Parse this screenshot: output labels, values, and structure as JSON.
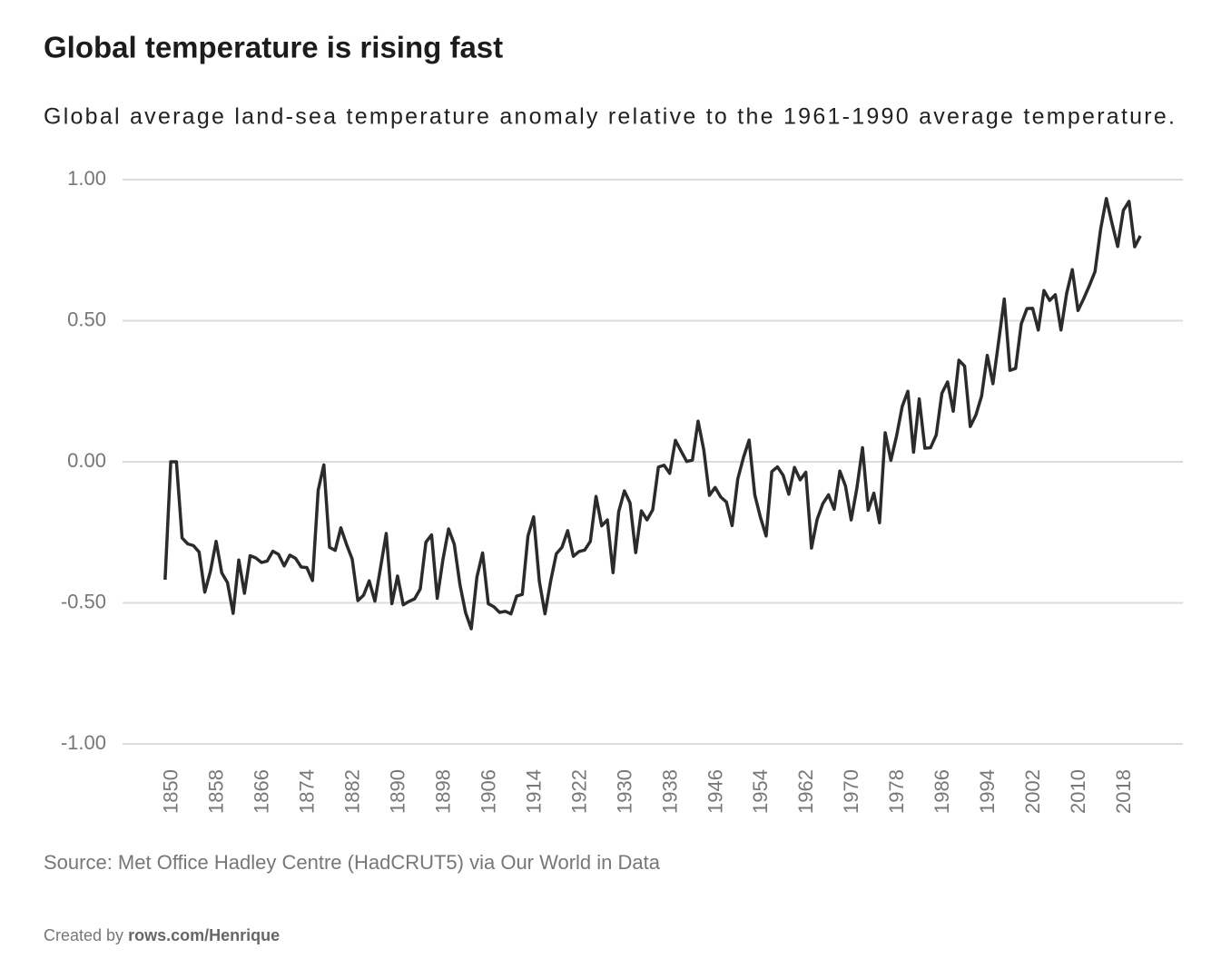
{
  "chart_data": {
    "type": "line",
    "title": "Global temperature is rising fast",
    "subtitle": "Global average land-sea temperature anomaly relative to the 1961-1990 average temperature.",
    "source": "Source: Met Office Hadley Centre (HadCRUT5) via Our World in Data",
    "credit_prefix": "Created by",
    "credit_link": "rows.com/Henrique",
    "color": "#2b2b2b",
    "grid": true,
    "x": [
      1850,
      1851,
      1852,
      1853,
      1854,
      1855,
      1856,
      1857,
      1858,
      1859,
      1860,
      1861,
      1862,
      1863,
      1864,
      1865,
      1866,
      1867,
      1868,
      1869,
      1870,
      1871,
      1872,
      1873,
      1874,
      1875,
      1876,
      1877,
      1878,
      1879,
      1880,
      1881,
      1882,
      1883,
      1884,
      1885,
      1886,
      1887,
      1888,
      1889,
      1890,
      1891,
      1892,
      1893,
      1894,
      1895,
      1896,
      1897,
      1898,
      1899,
      1900,
      1901,
      1902,
      1903,
      1904,
      1905,
      1906,
      1907,
      1908,
      1909,
      1910,
      1911,
      1912,
      1913,
      1914,
      1915,
      1916,
      1917,
      1918,
      1919,
      1920,
      1921,
      1922,
      1923,
      1924,
      1925,
      1926,
      1927,
      1928,
      1929,
      1930,
      1931,
      1932,
      1933,
      1934,
      1935,
      1936,
      1937,
      1938,
      1939,
      1940,
      1941,
      1942,
      1943,
      1944,
      1945,
      1946,
      1947,
      1948,
      1949,
      1950,
      1951,
      1952,
      1953,
      1954,
      1955,
      1956,
      1957,
      1958,
      1959,
      1960,
      1961,
      1962,
      1963,
      1964,
      1965,
      1966,
      1967,
      1968,
      1969,
      1970,
      1971,
      1972,
      1973,
      1974,
      1975,
      1976,
      1977,
      1978,
      1979,
      1980,
      1981,
      1982,
      1983,
      1984,
      1985,
      1986,
      1987,
      1988,
      1989,
      1990,
      1991,
      1992,
      1993,
      1994,
      1995,
      1996,
      1997,
      1998,
      1999,
      2000,
      2001,
      2002,
      2003,
      2004,
      2005,
      2006,
      2007,
      2008,
      2009,
      2010,
      2011,
      2012,
      2013,
      2014,
      2015,
      2016,
      2017,
      2018,
      2019,
      2020,
      2021,
      2022
    ],
    "values": [
      -0.418,
      0.0,
      0.0,
      -0.27,
      -0.291,
      -0.297,
      -0.32,
      -0.462,
      -0.388,
      -0.282,
      -0.394,
      -0.428,
      -0.537,
      -0.348,
      -0.466,
      -0.333,
      -0.341,
      -0.357,
      -0.352,
      -0.317,
      -0.328,
      -0.369,
      -0.331,
      -0.342,
      -0.373,
      -0.375,
      -0.421,
      -0.101,
      -0.011,
      -0.303,
      -0.314,
      -0.234,
      -0.293,
      -0.345,
      -0.492,
      -0.473,
      -0.422,
      -0.494,
      -0.375,
      -0.254,
      -0.503,
      -0.405,
      -0.507,
      -0.495,
      -0.486,
      -0.451,
      -0.285,
      -0.259,
      -0.484,
      -0.347,
      -0.238,
      -0.292,
      -0.435,
      -0.535,
      -0.592,
      -0.408,
      -0.323,
      -0.503,
      -0.514,
      -0.534,
      -0.53,
      -0.539,
      -0.476,
      -0.47,
      -0.263,
      -0.195,
      -0.423,
      -0.539,
      -0.423,
      -0.326,
      -0.303,
      -0.244,
      -0.335,
      -0.318,
      -0.313,
      -0.282,
      -0.123,
      -0.227,
      -0.206,
      -0.393,
      -0.177,
      -0.103,
      -0.146,
      -0.322,
      -0.174,
      -0.206,
      -0.17,
      -0.019,
      -0.012,
      -0.041,
      0.076,
      0.038,
      0.001,
      0.006,
      0.144,
      0.043,
      -0.119,
      -0.091,
      -0.125,
      -0.143,
      -0.226,
      -0.061,
      0.015,
      0.077,
      -0.117,
      -0.197,
      -0.263,
      -0.035,
      -0.018,
      -0.048,
      -0.115,
      -0.02,
      -0.064,
      -0.037,
      -0.306,
      -0.204,
      -0.148,
      -0.117,
      -0.168,
      -0.033,
      -0.086,
      -0.206,
      -0.094,
      0.05,
      -0.172,
      -0.111,
      -0.216,
      0.103,
      0.005,
      0.091,
      0.196,
      0.25,
      0.034,
      0.223,
      0.048,
      0.05,
      0.095,
      0.243,
      0.283,
      0.179,
      0.36,
      0.339,
      0.125,
      0.166,
      0.233,
      0.377,
      0.277,
      0.425,
      0.577,
      0.324,
      0.331,
      0.489,
      0.543,
      0.544,
      0.467,
      0.607,
      0.572,
      0.592,
      0.467,
      0.597,
      0.681,
      0.536,
      0.578,
      0.624,
      0.674,
      0.825,
      0.933,
      0.845,
      0.763,
      0.891,
      0.923,
      0.762,
      0.801
    ],
    "xlim": [
      1842.5,
      2029.5
    ],
    "xticks": [
      1850,
      1858,
      1866,
      1874,
      1882,
      1890,
      1898,
      1906,
      1914,
      1922,
      1930,
      1938,
      1946,
      1954,
      1962,
      1970,
      1978,
      1986,
      1994,
      2002,
      2010,
      2018
    ],
    "ylim": [
      -1,
      1
    ],
    "yticks": [
      {
        "value": -1,
        "label": "-1.00"
      },
      {
        "value": -0.5,
        "label": "-0.50"
      },
      {
        "value": 0,
        "label": "0.00"
      },
      {
        "value": 0.5,
        "label": "0.50"
      },
      {
        "value": 1,
        "label": "1.00"
      }
    ]
  }
}
